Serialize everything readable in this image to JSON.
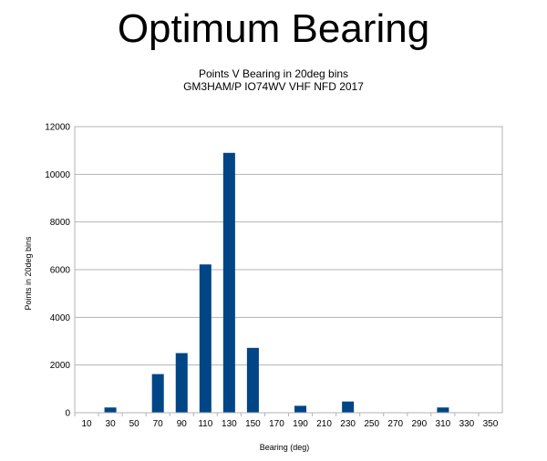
{
  "page": {
    "title": "Optimum Bearing"
  },
  "chart_data": {
    "type": "bar",
    "title": "Points V Bearing in 20deg bins",
    "subtitle": "GM3HAM/P IO74WV VHF NFD 2017",
    "xlabel": "Bearing (deg)",
    "ylabel": "Points in 20deg bins",
    "categories": [
      "10",
      "30",
      "50",
      "70",
      "90",
      "110",
      "130",
      "150",
      "170",
      "190",
      "210",
      "230",
      "250",
      "270",
      "290",
      "310",
      "330",
      "350"
    ],
    "values": [
      0,
      220,
      0,
      1620,
      2500,
      6220,
      10900,
      2720,
      0,
      290,
      0,
      470,
      0,
      0,
      0,
      220,
      0,
      0
    ],
    "ylim": [
      0,
      12000
    ],
    "yticks": [
      "0",
      "2000",
      "4000",
      "6000",
      "8000",
      "10000",
      "12000"
    ],
    "grid": "horizontal",
    "legend": "none",
    "bar_color": "#004586"
  }
}
